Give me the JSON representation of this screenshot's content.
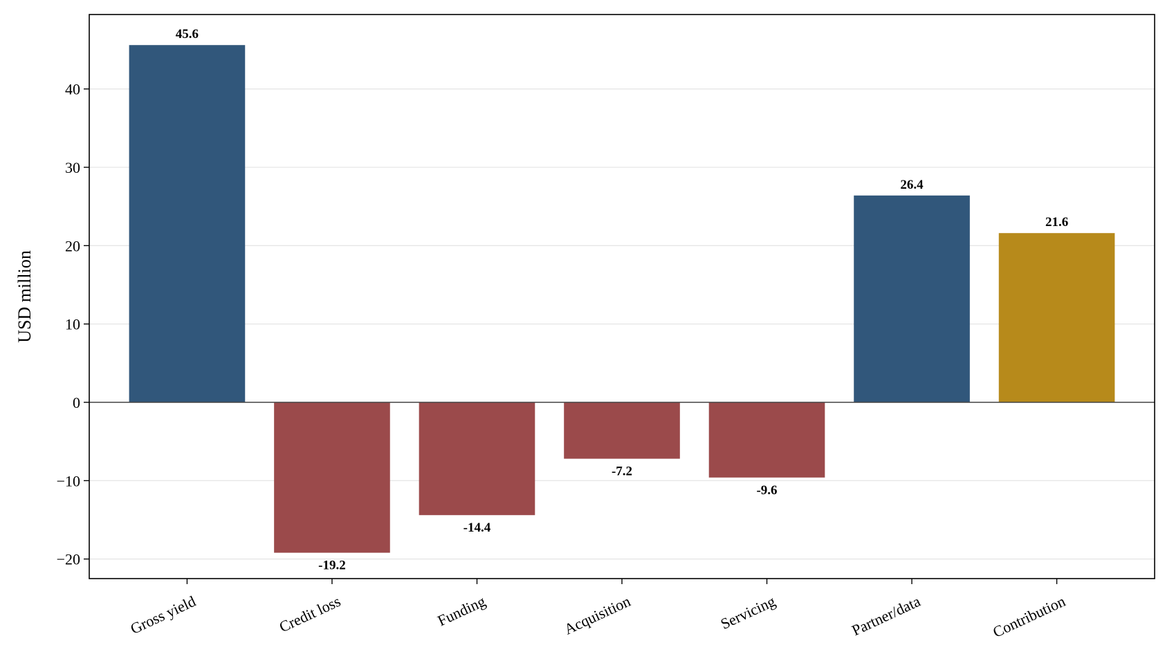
{
  "chart_data": {
    "type": "bar",
    "title": "",
    "xlabel": "",
    "ylabel": "USD million",
    "ylim": [
      -22.5,
      49.5
    ],
    "yticks": [
      -20,
      -10,
      0,
      10,
      20,
      30,
      40
    ],
    "ytick_labels": [
      "−20",
      "−10",
      "0",
      "10",
      "20",
      "30",
      "40"
    ],
    "grid": "horizontal",
    "categories": [
      "Gross yield",
      "Credit loss",
      "Funding",
      "Acquisition",
      "Servicing",
      "Partner/data",
      "Contribution"
    ],
    "values": [
      45.6,
      -19.2,
      -14.4,
      -7.2,
      -9.6,
      26.4,
      21.6
    ],
    "value_labels": [
      "45.6",
      "-19.2",
      "-14.4",
      "-7.2",
      "-9.6",
      "26.4",
      "21.6"
    ],
    "colors": [
      "#31577b",
      "#9b4a4b",
      "#9b4a4b",
      "#9b4a4b",
      "#9b4a4b",
      "#31577b",
      "#b78a1b"
    ]
  }
}
